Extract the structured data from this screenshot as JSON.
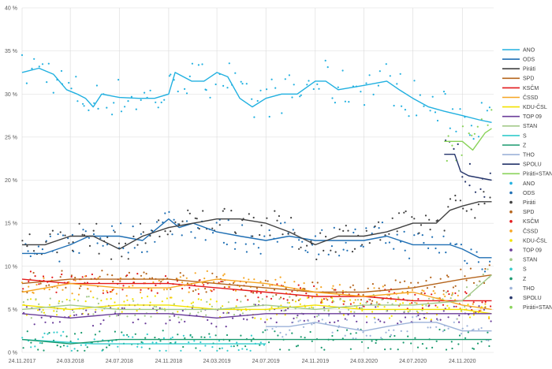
{
  "chart_data": {
    "type": "line",
    "title": "",
    "xlabel": "",
    "ylabel": "",
    "ylim": [
      0,
      40
    ],
    "xlim": [
      "2017-11-24",
      "2021-02-10"
    ],
    "grid": true,
    "legend_position": "right",
    "y_ticks": [
      "0 %",
      "5 %",
      "10 %",
      "15 %",
      "20 %",
      "25 %",
      "30 %",
      "35 %",
      "40 %"
    ],
    "x_ticks": [
      {
        "date": "2017-11-24",
        "label": "24.11.2017"
      },
      {
        "date": "2018-03-24",
        "label": "24.03.2018"
      },
      {
        "date": "2018-07-24",
        "label": "24.07.2018"
      },
      {
        "date": "2018-11-24",
        "label": "24.11.2018"
      },
      {
        "date": "2019-03-24",
        "label": "24.03.2019"
      },
      {
        "date": "2019-07-24",
        "label": "24.07.2019"
      },
      {
        "date": "2019-11-24",
        "label": "24.11.2019"
      },
      {
        "date": "2020-03-24",
        "label": "24.03.2020"
      },
      {
        "date": "2020-07-24",
        "label": "24.07.2020"
      },
      {
        "date": "2020-11-24",
        "label": "24.11.2020"
      }
    ],
    "series": [
      {
        "name": "ANO",
        "color": "#21b0e0",
        "x": [
          "2017-11-24",
          "2018-01-05",
          "2018-02-10",
          "2018-03-15",
          "2018-04-10",
          "2018-05-01",
          "2018-05-20",
          "2018-06-10",
          "2018-07-24",
          "2018-09-10",
          "2018-10-20",
          "2018-11-24",
          "2018-12-10",
          "2019-01-20",
          "2019-02-20",
          "2019-03-24",
          "2019-04-20",
          "2019-05-20",
          "2019-06-20",
          "2019-07-24",
          "2019-09-01",
          "2019-10-10",
          "2019-11-24",
          "2019-12-20",
          "2020-01-20",
          "2020-03-24",
          "2020-05-20",
          "2020-06-20",
          "2020-07-24",
          "2020-09-01",
          "2020-10-10",
          "2020-11-24",
          "2021-01-05",
          "2021-02-05"
        ],
        "y": [
          32.5,
          33.0,
          32.3,
          30.5,
          30.0,
          29.5,
          28.5,
          30.0,
          29.6,
          29.5,
          29.5,
          30.0,
          32.5,
          31.5,
          31.5,
          32.5,
          32.0,
          29.5,
          28.5,
          29.5,
          30.0,
          30.0,
          31.5,
          31.5,
          30.5,
          31.0,
          31.5,
          30.5,
          29.5,
          28.5,
          28.0,
          27.5,
          27.0,
          26.7
        ]
      },
      {
        "name": "ODS",
        "color": "#1f6fb4",
        "x": [
          "2017-11-24",
          "2018-01-20",
          "2018-03-24",
          "2018-05-10",
          "2018-07-24",
          "2018-09-20",
          "2018-11-24",
          "2018-12-20",
          "2019-01-24",
          "2019-03-24",
          "2019-05-20",
          "2019-07-24",
          "2019-09-20",
          "2019-11-24",
          "2020-01-20",
          "2020-03-24",
          "2020-05-20",
          "2020-07-24",
          "2020-09-20",
          "2020-10-24",
          "2020-11-24",
          "2021-01-05",
          "2021-02-05"
        ],
        "y": [
          11.5,
          11.5,
          12.5,
          13.5,
          13.5,
          13.0,
          15.5,
          14.5,
          15.0,
          14.0,
          13.5,
          13.0,
          13.5,
          13.0,
          13.0,
          13.0,
          13.5,
          12.5,
          12.5,
          12.5,
          12.0,
          11.0,
          11.0
        ]
      },
      {
        "name": "Piráti",
        "color": "#404040",
        "x": [
          "2017-11-24",
          "2018-01-20",
          "2018-03-24",
          "2018-05-20",
          "2018-07-24",
          "2018-09-20",
          "2018-11-24",
          "2019-01-24",
          "2019-03-24",
          "2019-05-20",
          "2019-07-24",
          "2019-09-20",
          "2019-11-24",
          "2020-01-20",
          "2020-03-24",
          "2020-05-20",
          "2020-07-24",
          "2020-09-20",
          "2020-10-24",
          "2020-11-24",
          "2021-01-05",
          "2021-02-05"
        ],
        "y": [
          12.5,
          12.5,
          13.5,
          13.5,
          12.0,
          13.5,
          14.5,
          15.0,
          15.5,
          15.5,
          15.0,
          14.0,
          12.5,
          13.5,
          13.5,
          14.0,
          15.0,
          15.0,
          16.5,
          17.0,
          17.5,
          17.5
        ]
      },
      {
        "name": "SPD",
        "color": "#b5651d",
        "x": [
          "2017-11-24",
          "2018-03-24",
          "2018-07-24",
          "2018-11-24",
          "2019-03-24",
          "2019-07-24",
          "2019-11-24",
          "2020-03-24",
          "2020-07-24",
          "2020-11-24",
          "2021-02-05"
        ],
        "y": [
          8.0,
          8.5,
          8.5,
          8.5,
          8.0,
          7.5,
          7.0,
          7.0,
          7.5,
          8.5,
          9.0
        ]
      },
      {
        "name": "KSČM",
        "color": "#e31a1c",
        "x": [
          "2017-11-24",
          "2018-03-24",
          "2018-07-24",
          "2018-11-24",
          "2019-03-24",
          "2019-07-24",
          "2019-11-24",
          "2020-03-24",
          "2020-07-24",
          "2020-11-24",
          "2021-02-05"
        ],
        "y": [
          8.5,
          8.0,
          8.0,
          8.0,
          7.5,
          7.0,
          6.5,
          6.5,
          6.0,
          6.0,
          6.0
        ]
      },
      {
        "name": "ČSSD",
        "color": "#f6a623",
        "x": [
          "2017-11-24",
          "2018-03-24",
          "2018-07-24",
          "2018-11-24",
          "2019-03-24",
          "2019-07-24",
          "2019-11-24",
          "2020-03-24",
          "2020-07-24",
          "2020-11-24",
          "2021-02-05"
        ],
        "y": [
          7.0,
          8.0,
          7.5,
          7.5,
          8.5,
          8.0,
          7.0,
          6.5,
          7.0,
          5.5,
          5.0
        ]
      },
      {
        "name": "KDU-ČSL",
        "color": "#f2e200",
        "x": [
          "2017-11-24",
          "2018-03-24",
          "2018-07-24",
          "2018-11-24",
          "2019-03-24",
          "2019-07-24",
          "2019-11-24",
          "2020-03-24",
          "2020-07-24",
          "2020-11-24",
          "2021-02-05"
        ],
        "y": [
          5.5,
          5.0,
          5.5,
          5.5,
          5.0,
          5.0,
          5.5,
          5.0,
          5.0,
          5.0,
          4.5
        ]
      },
      {
        "name": "TOP 09",
        "color": "#6a3d9a",
        "x": [
          "2017-11-24",
          "2018-03-24",
          "2018-07-24",
          "2018-11-24",
          "2019-03-24",
          "2019-07-24",
          "2019-11-24",
          "2020-03-24",
          "2020-07-24",
          "2020-11-24",
          "2021-02-05"
        ],
        "y": [
          4.5,
          4.0,
          4.5,
          4.5,
          4.0,
          4.5,
          4.5,
          4.5,
          4.5,
          4.5,
          4.5
        ]
      },
      {
        "name": "STAN",
        "color": "#a3c98a",
        "x": [
          "2017-11-24",
          "2018-03-24",
          "2018-07-24",
          "2018-11-24",
          "2019-03-24",
          "2019-07-24",
          "2019-11-24",
          "2020-03-24",
          "2020-07-24",
          "2020-11-24",
          "2021-02-05"
        ],
        "y": [
          5.0,
          5.5,
          5.0,
          5.0,
          5.0,
          5.5,
          5.0,
          5.5,
          5.5,
          6.0,
          9.0
        ]
      },
      {
        "name": "S",
        "color": "#33cccc",
        "x": [
          "2017-11-24",
          "2018-05-20",
          "2018-11-24",
          "2019-05-20",
          "2019-07-24"
        ],
        "y": [
          1.5,
          1.0,
          1.0,
          1.0,
          1.0
        ]
      },
      {
        "name": "Z",
        "color": "#1a9a6e",
        "x": [
          "2017-11-24",
          "2018-03-24",
          "2018-07-24",
          "2018-11-24",
          "2019-03-24",
          "2019-07-24",
          "2019-11-24",
          "2020-03-24",
          "2020-07-24",
          "2020-11-24",
          "2021-02-05"
        ],
        "y": [
          1.5,
          1.0,
          1.5,
          1.5,
          1.5,
          1.5,
          1.5,
          1.5,
          1.5,
          1.5,
          1.5
        ]
      },
      {
        "name": "THO",
        "color": "#9db3d9",
        "x": [
          "2019-07-24",
          "2019-09-20",
          "2019-11-24",
          "2020-01-20",
          "2020-03-24",
          "2020-05-20",
          "2020-07-24",
          "2020-09-20",
          "2020-11-24",
          "2021-02-05"
        ],
        "y": [
          3.0,
          3.0,
          3.5,
          3.0,
          2.5,
          3.0,
          3.5,
          3.5,
          2.5,
          2.5
        ]
      },
      {
        "name": "SPOLU",
        "color": "#25356b",
        "x": [
          "2020-10-10",
          "2020-11-05",
          "2020-11-20",
          "2020-12-10",
          "2021-02-05"
        ],
        "y": [
          23.0,
          23.0,
          21.0,
          20.5,
          20.0
        ]
      },
      {
        "name": "Piráti+STAN",
        "color": "#8ad35a",
        "x": [
          "2020-10-10",
          "2020-11-05",
          "2020-11-24",
          "2020-12-20",
          "2021-01-20",
          "2021-02-05"
        ],
        "y": [
          24.5,
          24.5,
          24.5,
          23.5,
          25.5,
          26.0
        ]
      }
    ],
    "legend": [
      {
        "label": "ANO",
        "kind": "line",
        "color": "#21b0e0"
      },
      {
        "label": "ODS",
        "kind": "line",
        "color": "#1f6fb4"
      },
      {
        "label": "Piráti",
        "kind": "line",
        "color": "#404040"
      },
      {
        "label": "SPD",
        "kind": "line",
        "color": "#b5651d"
      },
      {
        "label": "KSČM",
        "kind": "line",
        "color": "#e31a1c"
      },
      {
        "label": "ČSSD",
        "kind": "line",
        "color": "#f6a623"
      },
      {
        "label": "KDU-ČSL",
        "kind": "line",
        "color": "#f2e200"
      },
      {
        "label": "TOP 09",
        "kind": "line",
        "color": "#6a3d9a"
      },
      {
        "label": "STAN",
        "kind": "line",
        "color": "#a3c98a"
      },
      {
        "label": "S",
        "kind": "line",
        "color": "#33cccc"
      },
      {
        "label": "Z",
        "kind": "line",
        "color": "#1a9a6e"
      },
      {
        "label": "THO",
        "kind": "line",
        "color": "#9db3d9"
      },
      {
        "label": "SPOLU",
        "kind": "line",
        "color": "#25356b"
      },
      {
        "label": "Piráti+STAN",
        "kind": "line",
        "color": "#8ad35a"
      },
      {
        "label": "ANO",
        "kind": "dot",
        "color": "#21b0e0"
      },
      {
        "label": "ODS",
        "kind": "dot",
        "color": "#1f6fb4"
      },
      {
        "label": "Piráti",
        "kind": "dot",
        "color": "#404040"
      },
      {
        "label": "SPD",
        "kind": "dot",
        "color": "#b5651d"
      },
      {
        "label": "KSČM",
        "kind": "dot",
        "color": "#e31a1c"
      },
      {
        "label": "ČSSD",
        "kind": "dot",
        "color": "#f6a623"
      },
      {
        "label": "KDU-ČSL",
        "kind": "dot",
        "color": "#f2e200"
      },
      {
        "label": "TOP 09",
        "kind": "dot",
        "color": "#6a3d9a"
      },
      {
        "label": "STAN",
        "kind": "dot",
        "color": "#a3c98a"
      },
      {
        "label": "S",
        "kind": "dot",
        "color": "#33cccc"
      },
      {
        "label": "Z",
        "kind": "dot",
        "color": "#1a9a6e"
      },
      {
        "label": "THO",
        "kind": "dot",
        "color": "#9db3d9"
      },
      {
        "label": "SPOLU",
        "kind": "dot",
        "color": "#25356b"
      },
      {
        "label": "Piráti+STAN",
        "kind": "dot",
        "color": "#8ad35a"
      }
    ]
  }
}
